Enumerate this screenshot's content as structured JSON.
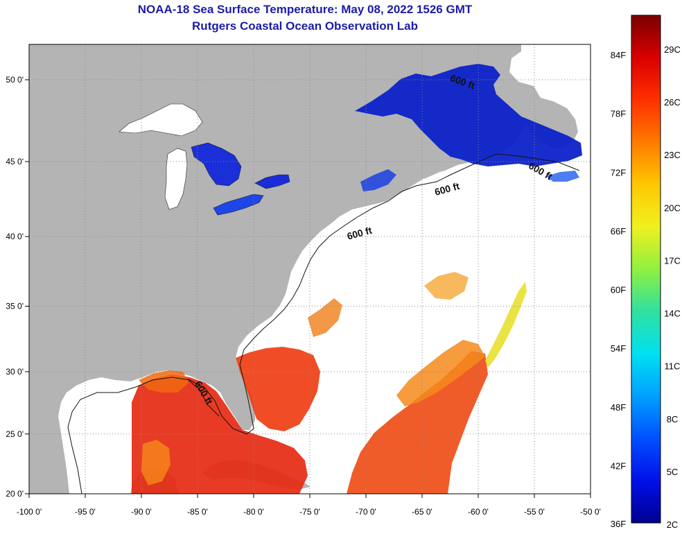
{
  "title": "NOAA-18 Sea Surface Temperature:  May 08, 2022 1526 GMT",
  "subtitle": "Rutgers Coastal Ocean Observation Lab",
  "map": {
    "x_ticks": [
      {
        "lon": -100,
        "label": "-100 0'"
      },
      {
        "lon": -95,
        "label": "-95 0'"
      },
      {
        "lon": -90,
        "label": "-90 0'"
      },
      {
        "lon": -85,
        "label": "-85 0'"
      },
      {
        "lon": -80,
        "label": "-80 0'"
      },
      {
        "lon": -75,
        "label": "-75 0'"
      },
      {
        "lon": -70,
        "label": "-70 0'"
      },
      {
        "lon": -65,
        "label": "-65 0'"
      },
      {
        "lon": -60,
        "label": "-60 0'"
      },
      {
        "lon": -55,
        "label": "-55 0'"
      },
      {
        "lon": -50,
        "label": "-50 0'"
      }
    ],
    "y_ticks": [
      {
        "lat": 20,
        "label": "20 0'"
      },
      {
        "lat": 25,
        "label": "25 0'"
      },
      {
        "lat": 30,
        "label": "30 0'"
      },
      {
        "lat": 35,
        "label": "35 0'"
      },
      {
        "lat": 40,
        "label": "40 0'"
      },
      {
        "lat": 45,
        "label": "45 0'"
      },
      {
        "lat": 50,
        "label": "50 0'"
      }
    ],
    "lon_range": [
      -100,
      -50
    ],
    "grid": "dotted",
    "contour_labels": [
      {
        "text": "600 ft",
        "lon": -61.5,
        "lat": 49.7
      },
      {
        "text": "600 ft",
        "lon": -54.6,
        "lat": 44.2
      },
      {
        "text": "600 ft",
        "lon": -62.7,
        "lat": 43.0
      },
      {
        "text": "600 ft",
        "lon": -70.5,
        "lat": 40.0
      },
      {
        "text": "600 ft",
        "lon": -84.7,
        "lat": 28.2
      }
    ],
    "colors": {
      "land": "#b4b4b4",
      "ocean_nodata": "#ffffff",
      "grid": "#8a8a8a"
    }
  },
  "colorbar": {
    "fahrenheit": [
      "84F",
      "78F",
      "72F",
      "66F",
      "60F",
      "54F",
      "48F",
      "42F",
      "36F"
    ],
    "celsius": [
      "29C",
      "26C",
      "23C",
      "20C",
      "17C",
      "14C",
      "11C",
      "8C",
      "5C",
      "2C"
    ],
    "gradient": [
      "#7a0000",
      "#d80000",
      "#ff3000",
      "#ff7a00",
      "#ffc800",
      "#f0f020",
      "#90f040",
      "#30e0a0",
      "#00e0f0",
      "#00a0ff",
      "#0050ff",
      "#0010e8",
      "#000090"
    ]
  }
}
